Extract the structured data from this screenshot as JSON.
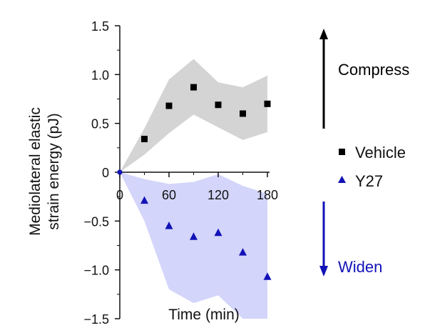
{
  "chart_data": {
    "type": "scatter",
    "xlabel": "Time (min)",
    "ylabel": [
      "Mediolateral elastic",
      "strain energy (pJ)"
    ],
    "xlim": [
      0,
      180
    ],
    "ylim": [
      -1.5,
      1.5
    ],
    "x_ticks": [
      0,
      60,
      120,
      180
    ],
    "x_tick_labels": [
      "0",
      "60",
      "120",
      "180"
    ],
    "y_ticks": [
      1.5,
      1.0,
      0.5,
      0,
      -0.5,
      -1.0,
      -1.5
    ],
    "y_tick_labels": [
      "1.5",
      "1.0",
      "0.5",
      "0",
      "-0.5",
      "-1.0",
      "-1.5"
    ],
    "series": [
      {
        "name": "Vehicle",
        "marker": "square",
        "color": "#000000",
        "band_color": "#d4d4d4",
        "x": [
          0,
          30,
          60,
          90,
          120,
          150,
          180
        ],
        "values": [
          0,
          0.34,
          0.68,
          0.87,
          0.69,
          0.6,
          0.7
        ],
        "upper": [
          0,
          0.45,
          0.95,
          1.16,
          0.92,
          0.87,
          0.99
        ],
        "lower": [
          0,
          0.18,
          0.4,
          0.59,
          0.46,
          0.33,
          0.41
        ]
      },
      {
        "name": "Y27",
        "marker": "triangle",
        "color": "#1212b8",
        "band_color": "#d3d5fa",
        "x": [
          0,
          30,
          60,
          90,
          120,
          150,
          180
        ],
        "values": [
          0,
          -0.29,
          -0.55,
          -0.66,
          -0.62,
          -0.82,
          -1.07
        ],
        "upper": [
          0,
          -0.07,
          -0.12,
          -0.1,
          -0.02,
          -0.14,
          -0.22
        ],
        "lower": [
          0,
          -0.5,
          -1.2,
          -1.34,
          -1.26,
          -1.5,
          -1.5
        ]
      }
    ],
    "annotations": {
      "compress": {
        "label": "Compress",
        "color": "#000000"
      },
      "widen": {
        "label": "Widen",
        "color": "#1212b8"
      }
    }
  }
}
